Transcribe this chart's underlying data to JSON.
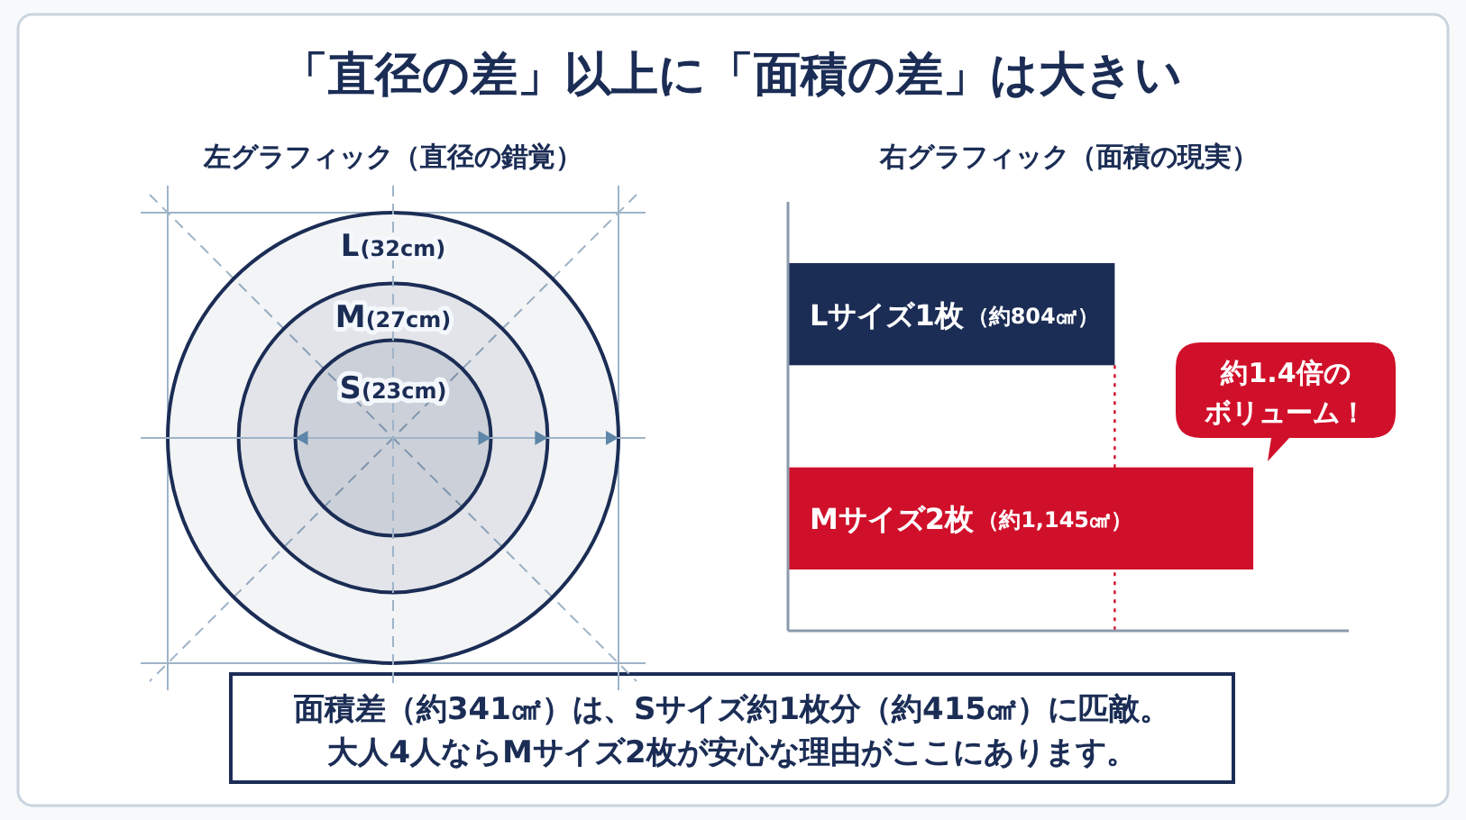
{
  "chart_data": [
    {
      "type": "other",
      "title": "「直径の差」以上に「面積の差」は大きい",
      "annotations": [
        "面積差（約341㎠）は、Sサイズ約1枚分（約415㎠）に匹敵。",
        "大人4人ならMサイズ2枚が安心な理由がここにあります。"
      ]
    },
    {
      "type": "other",
      "title": "左グラフィック（直径の錯覚）",
      "categories": [
        "L",
        "M",
        "S"
      ],
      "values": [
        32,
        27,
        23
      ],
      "value_labels": [
        "(32cm)",
        "(27cm)",
        "(23cm)"
      ],
      "color": "#1b2d55"
    },
    {
      "type": "bar",
      "orientation": "horizontal",
      "title": "右グラフィック（面積の現実）",
      "categories": [
        "Lサイズ1枚",
        "Mサイズ2枚"
      ],
      "values": [
        804,
        1145
      ],
      "colors": [
        "#1b2d55",
        "#d0102a"
      ],
      "value_labels": [
        "（約804㎠）",
        "（約1,145㎠）"
      ],
      "xlim": [
        0,
        1380
      ],
      "ref_lines": [
        {
          "axis": "x",
          "value": 804,
          "color": "#d0102a",
          "line_style": "dotted"
        }
      ],
      "annotations": [
        "約1.4倍の",
        "ボリューム！"
      ]
    }
  ]
}
